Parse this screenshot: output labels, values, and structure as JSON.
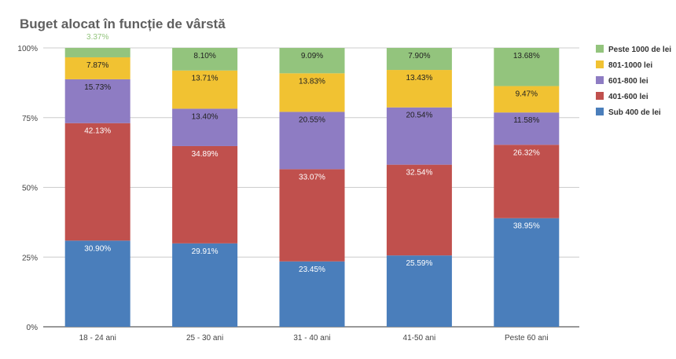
{
  "chart_data": {
    "type": "bar",
    "stacked": "percent",
    "title": "Buget alocat în funcție de vârstă",
    "xlabel": "",
    "ylabel": "",
    "ylim": [
      0,
      100
    ],
    "yticks": [
      "0%",
      "25%",
      "50%",
      "75%",
      "100%"
    ],
    "grid": true,
    "legend_position": "right",
    "categories": [
      "18 - 24 ani",
      "25 - 30 ani",
      "31 - 40 ani",
      "41-50 ani",
      "Peste 60 ani"
    ],
    "series": [
      {
        "name": "Sub 400 de lei",
        "color": "#4a7ebb",
        "label_color": "#ffffff",
        "values": [
          30.9,
          29.91,
          23.45,
          25.59,
          38.95
        ]
      },
      {
        "name": "401-600 lei",
        "color": "#c0504d",
        "label_color": "#ffffff",
        "values": [
          42.13,
          34.89,
          33.07,
          32.54,
          26.32
        ]
      },
      {
        "name": "601-800 lei",
        "color": "#8e7cc3",
        "label_color": "#222222",
        "values": [
          15.73,
          13.4,
          20.55,
          20.54,
          11.58
        ]
      },
      {
        "name": "801-1000 lei",
        "color": "#f1c232",
        "label_color": "#222222",
        "values": [
          7.87,
          13.71,
          13.83,
          13.43,
          9.47
        ]
      },
      {
        "name": "Peste 1000 de lei",
        "color": "#93c47d",
        "label_color": "#222222",
        "values": [
          3.37,
          8.1,
          9.09,
          7.9,
          13.68
        ]
      }
    ]
  }
}
